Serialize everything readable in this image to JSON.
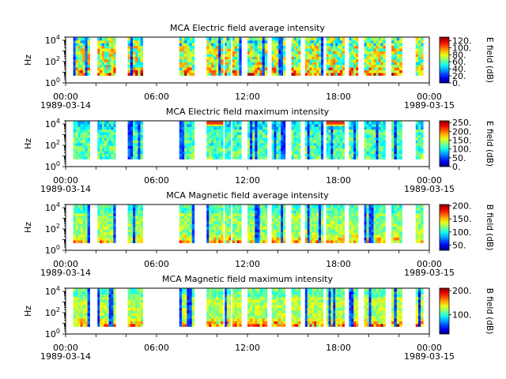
{
  "chart_data": [
    {
      "type": "heatmap",
      "title": "MCA  Electric field average intensity",
      "ylabel": "Hz",
      "colorbar_label": "E field (dB)",
      "colorbar_ticks": [
        "0.",
        "20.",
        "40.",
        "60.",
        "80.",
        "100.",
        "120."
      ],
      "colorbar_range": [
        0,
        130
      ],
      "y_scale": "log",
      "ylim": [
        1,
        20000
      ],
      "x_start": "1989-03-14T00:00",
      "x_end": "1989-03-15T00:00",
      "x_ticks": [
        {
          "time": "00:00",
          "date": "1989-03-14"
        },
        {
          "time": "06:00",
          "date": ""
        },
        {
          "time": "12:00",
          "date": ""
        },
        {
          "time": "18:00",
          "date": ""
        },
        {
          "time": "00:00",
          "date": "1989-03-15"
        }
      ],
      "data_intervals_hours": [
        [
          0.5,
          1.6
        ],
        [
          2.1,
          3.3
        ],
        [
          4.1,
          5.1
        ],
        [
          7.5,
          8.5
        ],
        [
          9.3,
          10.4
        ],
        [
          10.5,
          10.9
        ],
        [
          11.0,
          11.6
        ],
        [
          12.0,
          13.3
        ],
        [
          13.6,
          14.5
        ],
        [
          14.9,
          15.5
        ],
        [
          15.8,
          17.0
        ],
        [
          17.2,
          18.4
        ],
        [
          18.7,
          19.3
        ],
        [
          19.7,
          21.1
        ],
        [
          21.5,
          22.2
        ],
        [
          23.1,
          23.6
        ]
      ],
      "z_units": "dB"
    },
    {
      "type": "heatmap",
      "title": "MCA  Electric field maximum intensity",
      "ylabel": "Hz",
      "colorbar_label": "E field (dB)",
      "colorbar_ticks": [
        "0.",
        "50.",
        "100.",
        "150.",
        "200.",
        "250."
      ],
      "colorbar_range": [
        0,
        260
      ],
      "y_scale": "log",
      "ylim": [
        1,
        20000
      ],
      "x_start": "1989-03-14T00:00",
      "x_end": "1989-03-15T00:00",
      "x_ticks": [
        {
          "time": "00:00",
          "date": "1989-03-14"
        },
        {
          "time": "06:00",
          "date": ""
        },
        {
          "time": "12:00",
          "date": ""
        },
        {
          "time": "18:00",
          "date": ""
        },
        {
          "time": "00:00",
          "date": "1989-03-15"
        }
      ],
      "data_intervals_hours": [
        [
          0.5,
          1.6
        ],
        [
          2.1,
          3.3
        ],
        [
          4.1,
          5.1
        ],
        [
          7.5,
          8.5
        ],
        [
          9.3,
          10.4
        ],
        [
          10.5,
          10.9
        ],
        [
          11.0,
          11.6
        ],
        [
          12.0,
          13.3
        ],
        [
          13.6,
          14.5
        ],
        [
          14.9,
          15.5
        ],
        [
          15.8,
          17.0
        ],
        [
          17.2,
          18.4
        ],
        [
          18.7,
          19.3
        ],
        [
          19.7,
          21.1
        ],
        [
          21.5,
          22.2
        ],
        [
          23.1,
          23.6
        ]
      ],
      "z_units": "dB"
    },
    {
      "type": "heatmap",
      "title": "MCA  Magnetic field average intensity",
      "ylabel": "Hz",
      "colorbar_label": "B field (dB)",
      "colorbar_ticks": [
        "50.",
        "100.",
        "150.",
        "200."
      ],
      "colorbar_range": [
        30,
        205
      ],
      "y_scale": "log",
      "ylim": [
        1,
        20000
      ],
      "x_start": "1989-03-14T00:00",
      "x_end": "1989-03-15T00:00",
      "x_ticks": [
        {
          "time": "00:00",
          "date": "1989-03-14"
        },
        {
          "time": "06:00",
          "date": ""
        },
        {
          "time": "12:00",
          "date": ""
        },
        {
          "time": "18:00",
          "date": ""
        },
        {
          "time": "00:00",
          "date": "1989-03-15"
        }
      ],
      "data_intervals_hours": [
        [
          0.5,
          1.6
        ],
        [
          2.1,
          3.3
        ],
        [
          4.1,
          5.1
        ],
        [
          7.5,
          8.5
        ],
        [
          9.3,
          10.4
        ],
        [
          10.5,
          10.9
        ],
        [
          11.0,
          11.6
        ],
        [
          12.0,
          13.3
        ],
        [
          13.6,
          14.5
        ],
        [
          14.9,
          15.5
        ],
        [
          15.8,
          17.0
        ],
        [
          17.2,
          18.4
        ],
        [
          18.7,
          19.3
        ],
        [
          19.7,
          21.1
        ],
        [
          21.5,
          22.2
        ],
        [
          23.1,
          23.6
        ]
      ],
      "z_units": "dB"
    },
    {
      "type": "heatmap",
      "title": "MCA  Magnetic field maximum intensity",
      "ylabel": "Hz",
      "colorbar_label": "B field (dB)",
      "colorbar_ticks": [
        "100.",
        "200."
      ],
      "colorbar_range": [
        20,
        210
      ],
      "y_scale": "log",
      "ylim": [
        1,
        20000
      ],
      "x_start": "1989-03-14T00:00",
      "x_end": "1989-03-15T00:00",
      "x_ticks": [
        {
          "time": "00:00",
          "date": "1989-03-14"
        },
        {
          "time": "06:00",
          "date": ""
        },
        {
          "time": "12:00",
          "date": ""
        },
        {
          "time": "18:00",
          "date": ""
        },
        {
          "time": "00:00",
          "date": "1989-03-15"
        }
      ],
      "data_intervals_hours": [
        [
          0.5,
          1.6
        ],
        [
          2.1,
          3.3
        ],
        [
          4.1,
          5.1
        ],
        [
          7.5,
          8.5
        ],
        [
          9.3,
          10.4
        ],
        [
          10.5,
          10.9
        ],
        [
          11.0,
          11.6
        ],
        [
          12.0,
          13.3
        ],
        [
          13.6,
          14.5
        ],
        [
          14.9,
          15.5
        ],
        [
          15.8,
          17.0
        ],
        [
          17.2,
          18.4
        ],
        [
          18.7,
          19.3
        ],
        [
          19.7,
          21.1
        ],
        [
          21.5,
          22.2
        ],
        [
          23.1,
          23.6
        ]
      ],
      "z_units": "dB"
    }
  ],
  "y_ticks": [
    {
      "value": 1,
      "base": "10",
      "exp": "0"
    },
    {
      "value": 100,
      "base": "10",
      "exp": "2"
    },
    {
      "value": 10000,
      "base": "10",
      "exp": "4"
    }
  ]
}
